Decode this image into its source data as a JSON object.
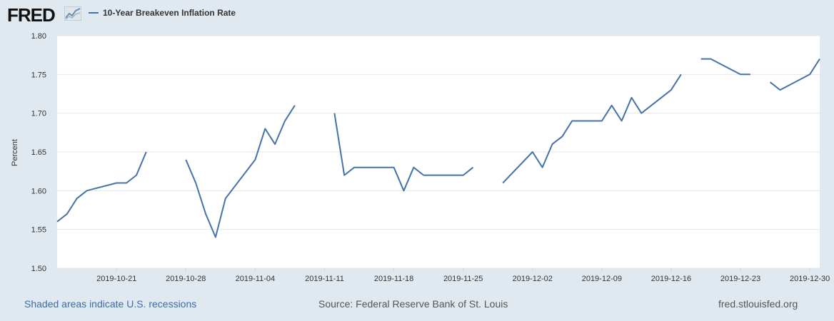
{
  "header": {
    "logo_text": "FRED",
    "logo_icon": "fred-chart-icon",
    "legend_label": "10-Year Breakeven Inflation Rate"
  },
  "footer": {
    "recessions_note": "Shaded areas indicate U.S. recessions",
    "source": "Source: Federal Reserve Bank of St. Louis",
    "site": "fred.stlouisfed.org"
  },
  "colors": {
    "series": "#4572a7",
    "page_background": "#e1e9f0",
    "plot_background": "#ffffff",
    "grid": "#e6e6e6"
  },
  "chart_data": {
    "type": "line",
    "title": "",
    "xlabel": "",
    "ylabel": "Percent",
    "ylim": [
      1.5,
      1.8
    ],
    "yticks": [
      1.5,
      1.55,
      1.6,
      1.65,
      1.7,
      1.75,
      1.8
    ],
    "ytick_labels": [
      "1.50",
      "1.55",
      "1.60",
      "1.65",
      "1.70",
      "1.75",
      "1.80"
    ],
    "xlim": [
      "2019-10-15",
      "2019-12-31"
    ],
    "xtick_labels": [
      "2019-10-21",
      "2019-10-28",
      "2019-11-04",
      "2019-11-11",
      "2019-11-18",
      "2019-11-25",
      "2019-12-02",
      "2019-12-09",
      "2019-12-16",
      "2019-12-23",
      "2019-12-30"
    ],
    "grid": true,
    "legend": "top-left",
    "series": [
      {
        "name": "10-Year Breakeven Inflation Rate",
        "x": [
          "2019-10-15",
          "2019-10-16",
          "2019-10-17",
          "2019-10-18",
          "2019-10-21",
          "2019-10-22",
          "2019-10-23",
          "2019-10-24",
          "2019-10-25",
          "2019-10-28",
          "2019-10-29",
          "2019-10-30",
          "2019-10-31",
          "2019-11-01",
          "2019-11-04",
          "2019-11-05",
          "2019-11-06",
          "2019-11-07",
          "2019-11-08",
          "2019-11-11",
          "2019-11-12",
          "2019-11-13",
          "2019-11-14",
          "2019-11-15",
          "2019-11-18",
          "2019-11-19",
          "2019-11-20",
          "2019-11-21",
          "2019-11-22",
          "2019-11-25",
          "2019-11-26",
          "2019-11-27",
          "2019-11-28",
          "2019-11-29",
          "2019-12-02",
          "2019-12-03",
          "2019-12-04",
          "2019-12-05",
          "2019-12-06",
          "2019-12-09",
          "2019-12-10",
          "2019-12-11",
          "2019-12-12",
          "2019-12-13",
          "2019-12-16",
          "2019-12-17",
          "2019-12-18",
          "2019-12-19",
          "2019-12-20",
          "2019-12-23",
          "2019-12-24",
          "2019-12-25",
          "2019-12-26",
          "2019-12-27",
          "2019-12-30",
          "2019-12-31"
        ],
        "values": [
          1.56,
          1.57,
          1.59,
          1.6,
          1.61,
          1.61,
          1.62,
          1.65,
          null,
          1.64,
          1.61,
          1.57,
          1.54,
          1.59,
          1.64,
          1.68,
          1.66,
          1.69,
          1.71,
          null,
          1.7,
          1.62,
          1.63,
          1.63,
          1.63,
          1.6,
          1.63,
          1.62,
          1.62,
          1.62,
          1.63,
          null,
          null,
          1.61,
          1.65,
          1.63,
          1.66,
          1.67,
          1.69,
          1.69,
          1.71,
          1.69,
          1.72,
          1.7,
          1.73,
          1.75,
          null,
          1.77,
          1.77,
          1.75,
          1.75,
          null,
          1.74,
          1.73,
          1.75,
          1.77
        ]
      }
    ]
  }
}
